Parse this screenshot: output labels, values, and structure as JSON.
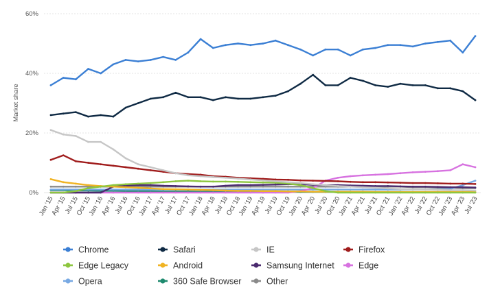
{
  "chart_data": {
    "type": "line",
    "title": "",
    "xlabel": "",
    "ylabel": "Market share",
    "ylim": [
      0,
      60
    ],
    "yticks": [
      "0%",
      "20%",
      "40%",
      "60%"
    ],
    "grid": true,
    "legend_position": "bottom",
    "x": [
      "Jan '15",
      "Apr '15",
      "Jul '15",
      "Oct '15",
      "Jan '16",
      "Apr '16",
      "Jul '16",
      "Oct '16",
      "Jan '17",
      "Apr '17",
      "Jul '17",
      "Oct '17",
      "Jan '18",
      "Apr '18",
      "Jul '18",
      "Oct '18",
      "Jan '19",
      "Apr '19",
      "Jul '19",
      "Oct '19",
      "Jan '20",
      "Apr '20",
      "Jul '20",
      "Oct '20",
      "Jan '21",
      "Apr '21",
      "Jul '21",
      "Oct '21",
      "Jan '22",
      "Apr '22",
      "Jul '22",
      "Oct '22",
      "Jan '23",
      "Apr '23",
      "Jul '23"
    ],
    "series": [
      {
        "name": "Chrome",
        "color": "#3b7fd4",
        "values": [
          36,
          38.5,
          38,
          41.5,
          40,
          43,
          44.5,
          44,
          44.5,
          45.5,
          44.5,
          47,
          51.5,
          48.5,
          49.5,
          50,
          49.5,
          50,
          51,
          49.5,
          48,
          46,
          48,
          48,
          46,
          48,
          48.5,
          49.5,
          49.5,
          49,
          50,
          50.5,
          51,
          47,
          52.5
        ]
      },
      {
        "name": "Safari",
        "color": "#0f2a44",
        "values": [
          26,
          26.5,
          27,
          25.5,
          26,
          25.5,
          28.5,
          30,
          31.5,
          32,
          33.5,
          32,
          32,
          31,
          32,
          31.5,
          31.5,
          32,
          32.5,
          34,
          36.5,
          39.5,
          36,
          36,
          38.5,
          37.5,
          36,
          35.5,
          36.5,
          36,
          36,
          35,
          35,
          34,
          31
        ]
      },
      {
        "name": "IE",
        "color": "#c6c6c6",
        "values": [
          21,
          19.5,
          19,
          17,
          17,
          14.5,
          11.5,
          9.5,
          8.5,
          7.5,
          6.5,
          5.8,
          5.5,
          5.2,
          5,
          4.7,
          4.4,
          4.1,
          3.8,
          3.5,
          3.2,
          2.8,
          2.5,
          2.2,
          2,
          1.8,
          1.6,
          1.4,
          1.2,
          1.1,
          1,
          0.9,
          0.8,
          0.8,
          0.7
        ]
      },
      {
        "name": "Firefox",
        "color": "#a01c1c",
        "values": [
          11,
          12.5,
          10.5,
          10,
          9.5,
          9,
          8.5,
          8,
          7.5,
          7,
          6.5,
          6.2,
          6,
          5.5,
          5.3,
          5,
          4.8,
          4.6,
          4.4,
          4.3,
          4.1,
          4,
          3.9,
          3.8,
          3.6,
          3.5,
          3.5,
          3.4,
          3.3,
          3.2,
          3.2,
          3.1,
          3,
          3,
          2.9
        ]
      },
      {
        "name": "Edge Legacy",
        "color": "#8dc63f",
        "values": [
          0,
          0,
          0.5,
          1.5,
          2,
          2.5,
          2.8,
          3,
          3.2,
          3.5,
          3.8,
          4,
          3.8,
          3.7,
          3.7,
          3.6,
          3.5,
          3.4,
          3.3,
          3,
          2.5,
          1.5,
          0.5,
          0,
          0,
          0,
          0,
          0,
          0,
          0,
          0,
          0,
          0,
          0,
          0
        ]
      },
      {
        "name": "Android",
        "color": "#f0b323",
        "values": [
          4.5,
          3.5,
          3,
          2.5,
          2.2,
          2,
          1.8,
          1.6,
          1.4,
          1.2,
          1.1,
          1,
          0.9,
          0.8,
          0.7,
          0.6,
          0.6,
          0.5,
          0.5,
          0.4,
          0.4,
          0.3,
          0.3,
          0.3,
          0.3,
          0.3,
          0.2,
          0.2,
          0.2,
          0.2,
          0.2,
          0.2,
          0.2,
          0.2,
          0.2
        ]
      },
      {
        "name": "Samsung Internet",
        "color": "#4a2a6e",
        "values": [
          0,
          0,
          0,
          0,
          0,
          2,
          2.3,
          2.5,
          2.5,
          2.3,
          2.2,
          2.1,
          2,
          2,
          2.3,
          2.5,
          2.5,
          2.6,
          2.7,
          2.8,
          2.8,
          2.6,
          2.5,
          2.5,
          2.4,
          2.3,
          2.2,
          2.2,
          2.1,
          2,
          2,
          1.9,
          1.8,
          1.8,
          1.7
        ]
      },
      {
        "name": "Edge",
        "color": "#d772e0",
        "values": [
          0,
          0,
          0,
          0,
          0,
          0,
          0,
          0,
          0,
          0,
          0,
          0,
          0,
          0,
          0,
          0,
          0,
          0,
          0,
          0,
          0.5,
          1.5,
          4,
          5,
          5.5,
          5.8,
          6,
          6.2,
          6.5,
          6.8,
          7,
          7.2,
          7.5,
          9.5,
          8.5
        ]
      },
      {
        "name": "Opera",
        "color": "#78a9e3",
        "values": [
          1,
          1,
          1,
          1,
          1,
          1,
          1,
          1,
          1,
          1,
          1,
          1,
          1,
          1,
          1,
          1,
          1,
          1,
          1,
          1,
          1,
          1,
          1,
          1,
          1,
          1,
          1,
          1,
          1,
          1,
          1,
          1,
          1.2,
          2.5,
          4
        ]
      },
      {
        "name": "360 Safe Browser",
        "color": "#1e8a6e",
        "values": [
          0.8,
          0.8,
          0.7,
          0.7,
          0.6,
          0.6,
          0.5,
          0.5,
          0.5,
          0.4,
          0.4,
          0.4,
          0.3,
          0.3,
          0.3,
          0.3,
          0.3,
          0.2,
          0.2,
          0.2,
          0.2,
          0.2,
          0.2,
          0.2,
          0.2,
          0.2,
          0.2,
          0.2,
          0.2,
          0.1,
          0.1,
          0.1,
          0.1,
          0.1,
          0.1
        ]
      },
      {
        "name": "Other",
        "color": "#8a8a8a",
        "values": [
          2,
          2,
          2,
          2,
          2,
          2,
          2,
          2,
          2,
          2,
          2,
          2,
          2,
          2,
          2,
          2,
          2,
          2,
          2,
          2,
          2,
          2,
          2,
          2,
          2,
          2,
          2,
          2,
          2,
          1.8,
          1.8,
          1.6,
          1.6,
          1.5,
          1.5
        ]
      }
    ]
  }
}
